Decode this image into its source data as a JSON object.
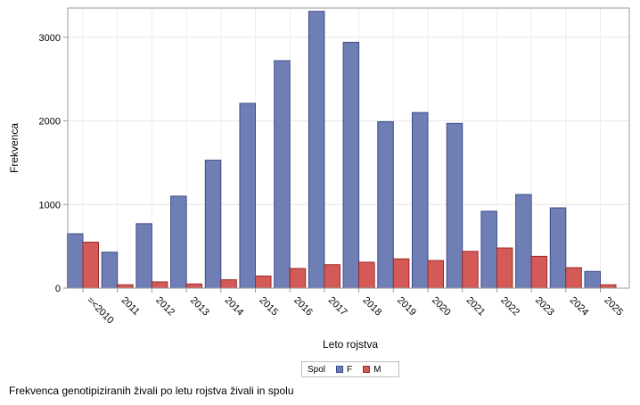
{
  "chart_data": {
    "type": "bar",
    "xlabel": "Leto rojstva",
    "ylabel": "Frekvenca",
    "ylim": [
      0,
      3300
    ],
    "yticks": [
      0,
      1000,
      2000,
      3000
    ],
    "grid": true,
    "legend_placement": "bottom-center",
    "legend_title": "Spol",
    "categories": [
      "=<2010",
      "2011",
      "2012",
      "2013",
      "2014",
      "2015",
      "2016",
      "2017",
      "2018",
      "2019",
      "2020",
      "2021",
      "2022",
      "2023",
      "2024",
      "2025"
    ],
    "series": [
      {
        "name": "F",
        "color": "#6f7fb5",
        "stroke": "#3c4a8a",
        "values": [
          650,
          430,
          770,
          1100,
          1530,
          2210,
          2720,
          3310,
          2940,
          1990,
          2100,
          1970,
          920,
          1120,
          960,
          200
        ]
      },
      {
        "name": "M",
        "color": "#d45a57",
        "stroke": "#9a2a28",
        "values": [
          550,
          40,
          75,
          50,
          100,
          145,
          235,
          280,
          310,
          350,
          330,
          440,
          480,
          380,
          245,
          40
        ]
      }
    ]
  },
  "footnote": "Frekvenca genotipiziranih živali po letu rojstva živali in spolu"
}
